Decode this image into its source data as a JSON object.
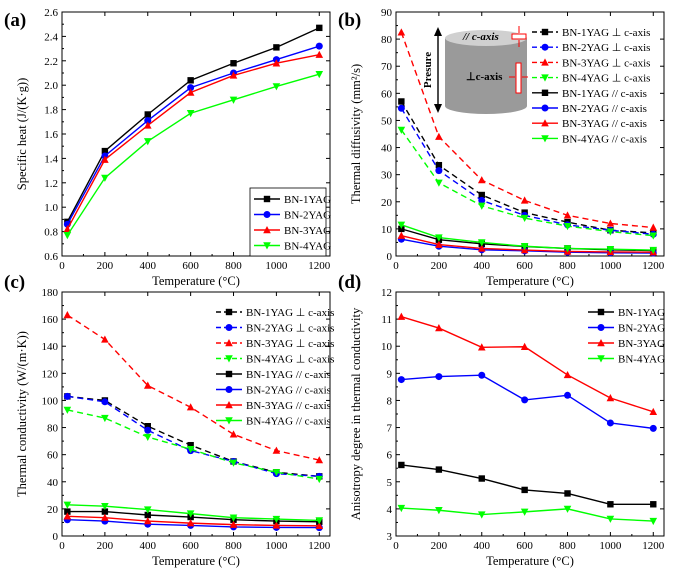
{
  "chart_data": [
    {
      "type": "line",
      "panel_label": "(a)",
      "xlabel": "Temperature (°C)",
      "ylabel": "Specific heat (J/(K·g))",
      "xlim": [
        0,
        1250
      ],
      "ylim": [
        0.6,
        2.6
      ],
      "xticks": [
        0,
        200,
        400,
        600,
        800,
        1000,
        1200
      ],
      "yticks": [
        0.6,
        0.8,
        1.0,
        1.2,
        1.4,
        1.6,
        1.8,
        2.0,
        2.2,
        2.4,
        2.6
      ],
      "ytick_format": 1,
      "legend_position": "bottom-right",
      "x": [
        25,
        200,
        400,
        600,
        800,
        1000,
        1200
      ],
      "series": [
        {
          "name": "BN-1YAG",
          "color": "#000000",
          "marker": "square",
          "dashed": false,
          "values": [
            0.88,
            1.46,
            1.76,
            2.04,
            2.18,
            2.31,
            2.47
          ]
        },
        {
          "name": "BN-2YAG",
          "color": "#0000ff",
          "marker": "circle",
          "dashed": false,
          "values": [
            0.86,
            1.42,
            1.71,
            1.98,
            2.1,
            2.21,
            2.32
          ]
        },
        {
          "name": "BN-3YAG",
          "color": "#ff0000",
          "marker": "triangle-up",
          "dashed": false,
          "values": [
            0.82,
            1.39,
            1.67,
            1.94,
            2.08,
            2.18,
            2.25
          ]
        },
        {
          "name": "BN-4YAG",
          "color": "#00ff00",
          "marker": "triangle-down",
          "dashed": false,
          "values": [
            0.77,
            1.24,
            1.54,
            1.77,
            1.88,
            1.99,
            2.09
          ]
        }
      ]
    },
    {
      "type": "line",
      "panel_label": "(b)",
      "xlabel": "Temperature (°C)",
      "ylabel": "Thermal diffusivity (mm²/s)",
      "xlim": [
        0,
        1250
      ],
      "ylim": [
        0,
        90
      ],
      "xticks": [
        0,
        200,
        400,
        600,
        800,
        1000,
        1200
      ],
      "yticks": [
        0,
        10,
        20,
        30,
        40,
        50,
        60,
        70,
        80,
        90
      ],
      "ytick_format": 0,
      "legend_position": "top-right",
      "inset": {
        "parallel_label": "// c-axis",
        "perp_label": "⊥c-axis",
        "pressure_label": "Presure"
      },
      "x": [
        25,
        200,
        400,
        600,
        800,
        1000,
        1200
      ],
      "series": [
        {
          "name": "BN-1YAG ⊥ c-axis",
          "color": "#000000",
          "marker": "square",
          "dashed": true,
          "values": [
            57,
            33.5,
            22.5,
            16,
            12.5,
            9.5,
            8.5
          ]
        },
        {
          "name": "BN-2YAG ⊥ c-axis",
          "color": "#0000ff",
          "marker": "circle",
          "dashed": true,
          "values": [
            54.5,
            31.5,
            20.5,
            15,
            11.5,
            9.5,
            8
          ]
        },
        {
          "name": "BN-3YAG ⊥ c-axis",
          "color": "#ff0000",
          "marker": "triangle-up",
          "dashed": true,
          "values": [
            82.5,
            44,
            28,
            20.5,
            15,
            12,
            10.5
          ]
        },
        {
          "name": "BN-4YAG ⊥ c-axis",
          "color": "#00ff00",
          "marker": "triangle-down",
          "dashed": true,
          "values": [
            46.5,
            27,
            18.5,
            14,
            11,
            9,
            7.5
          ]
        },
        {
          "name": "BN-1YAG // c-axis",
          "color": "#000000",
          "marker": "square",
          "dashed": false,
          "values": [
            10,
            6,
            4.5,
            3.5,
            2.8,
            2.3,
            2
          ]
        },
        {
          "name": "BN-2YAG // c-axis",
          "color": "#0000ff",
          "marker": "circle",
          "dashed": false,
          "values": [
            6.2,
            3.6,
            2.3,
            1.9,
            1.4,
            1.2,
            1.1
          ]
        },
        {
          "name": "BN-3YAG // c-axis",
          "color": "#ff0000",
          "marker": "triangle-up",
          "dashed": false,
          "values": [
            7.5,
            4.2,
            2.8,
            2.2,
            1.7,
            1.5,
            1.4
          ]
        },
        {
          "name": "BN-4YAG // c-axis",
          "color": "#00ff00",
          "marker": "triangle-down",
          "dashed": false,
          "values": [
            11.5,
            6.8,
            5,
            3.6,
            2.8,
            2.5,
            2.2
          ]
        }
      ]
    },
    {
      "type": "line",
      "panel_label": "(c)",
      "xlabel": "Temperature (°C)",
      "ylabel": "Thermal conductivity (W/(m·K))",
      "xlim": [
        0,
        1250
      ],
      "ylim": [
        0,
        180
      ],
      "xticks": [
        0,
        200,
        400,
        600,
        800,
        1000,
        1200
      ],
      "yticks": [
        0,
        20,
        40,
        60,
        80,
        100,
        120,
        140,
        160,
        180
      ],
      "ytick_format": 0,
      "legend_position": "top-right",
      "x": [
        25,
        200,
        400,
        600,
        800,
        1000,
        1200
      ],
      "series": [
        {
          "name": "BN-1YAG ⊥ c-axis",
          "color": "#000000",
          "marker": "square",
          "dashed": true,
          "values": [
            103,
            100,
            81,
            67,
            55,
            47,
            44
          ]
        },
        {
          "name": "BN-2YAG ⊥ c-axis",
          "color": "#0000ff",
          "marker": "circle",
          "dashed": true,
          "values": [
            103,
            99,
            78,
            63,
            55,
            46,
            44
          ]
        },
        {
          "name": "BN-3YAG ⊥ c-axis",
          "color": "#ff0000",
          "marker": "triangle-up",
          "dashed": true,
          "values": [
            163,
            145,
            111,
            95,
            75,
            63,
            56
          ]
        },
        {
          "name": "BN-4YAG ⊥ c-axis",
          "color": "#00ff00",
          "marker": "triangle-down",
          "dashed": true,
          "values": [
            93,
            87,
            73,
            64,
            54,
            47,
            42
          ]
        },
        {
          "name": "BN-1YAG // c-axis",
          "color": "#000000",
          "marker": "square",
          "dashed": false,
          "values": [
            18,
            18,
            15.5,
            14,
            12,
            11,
            10.5
          ]
        },
        {
          "name": "BN-2YAG // c-axis",
          "color": "#0000ff",
          "marker": "circle",
          "dashed": false,
          "values": [
            12,
            11,
            8.7,
            7.8,
            6.7,
            6.3,
            6.2
          ]
        },
        {
          "name": "BN-3YAG // c-axis",
          "color": "#ff0000",
          "marker": "triangle-up",
          "dashed": false,
          "values": [
            14.5,
            13.5,
            11,
            9.5,
            8.4,
            7.8,
            7.5
          ]
        },
        {
          "name": "BN-4YAG // c-axis",
          "color": "#00ff00",
          "marker": "triangle-down",
          "dashed": false,
          "values": [
            23,
            22,
            19.5,
            16.5,
            13.5,
            12.5,
            11.5
          ]
        }
      ]
    },
    {
      "type": "line",
      "panel_label": "(d)",
      "xlabel": "Temperature (°C)",
      "ylabel": "Anisotropy degree in thermal conductivity",
      "xlim": [
        0,
        1250
      ],
      "ylim": [
        3,
        12
      ],
      "xticks": [
        0,
        200,
        400,
        600,
        800,
        1000,
        1200
      ],
      "yticks": [
        3,
        4,
        5,
        6,
        7,
        8,
        9,
        10,
        11,
        12
      ],
      "ytick_format": 0,
      "legend_position": "top-right",
      "x": [
        25,
        200,
        400,
        600,
        800,
        1000,
        1200
      ],
      "series": [
        {
          "name": "BN-1YAG",
          "color": "#000000",
          "marker": "square",
          "dashed": false,
          "values": [
            5.62,
            5.45,
            5.12,
            4.7,
            4.57,
            4.17,
            4.17
          ]
        },
        {
          "name": "BN-2YAG",
          "color": "#0000ff",
          "marker": "circle",
          "dashed": false,
          "values": [
            8.77,
            8.88,
            8.93,
            8.02,
            8.19,
            7.17,
            6.97
          ]
        },
        {
          "name": "BN-3YAG",
          "color": "#ff0000",
          "marker": "triangle-up",
          "dashed": false,
          "values": [
            11.09,
            10.67,
            9.96,
            9.98,
            8.94,
            8.09,
            7.58
          ]
        },
        {
          "name": "BN-4YAG",
          "color": "#00ff00",
          "marker": "triangle-down",
          "dashed": false,
          "values": [
            4.03,
            3.95,
            3.79,
            3.89,
            4.0,
            3.63,
            3.55
          ]
        }
      ]
    }
  ]
}
